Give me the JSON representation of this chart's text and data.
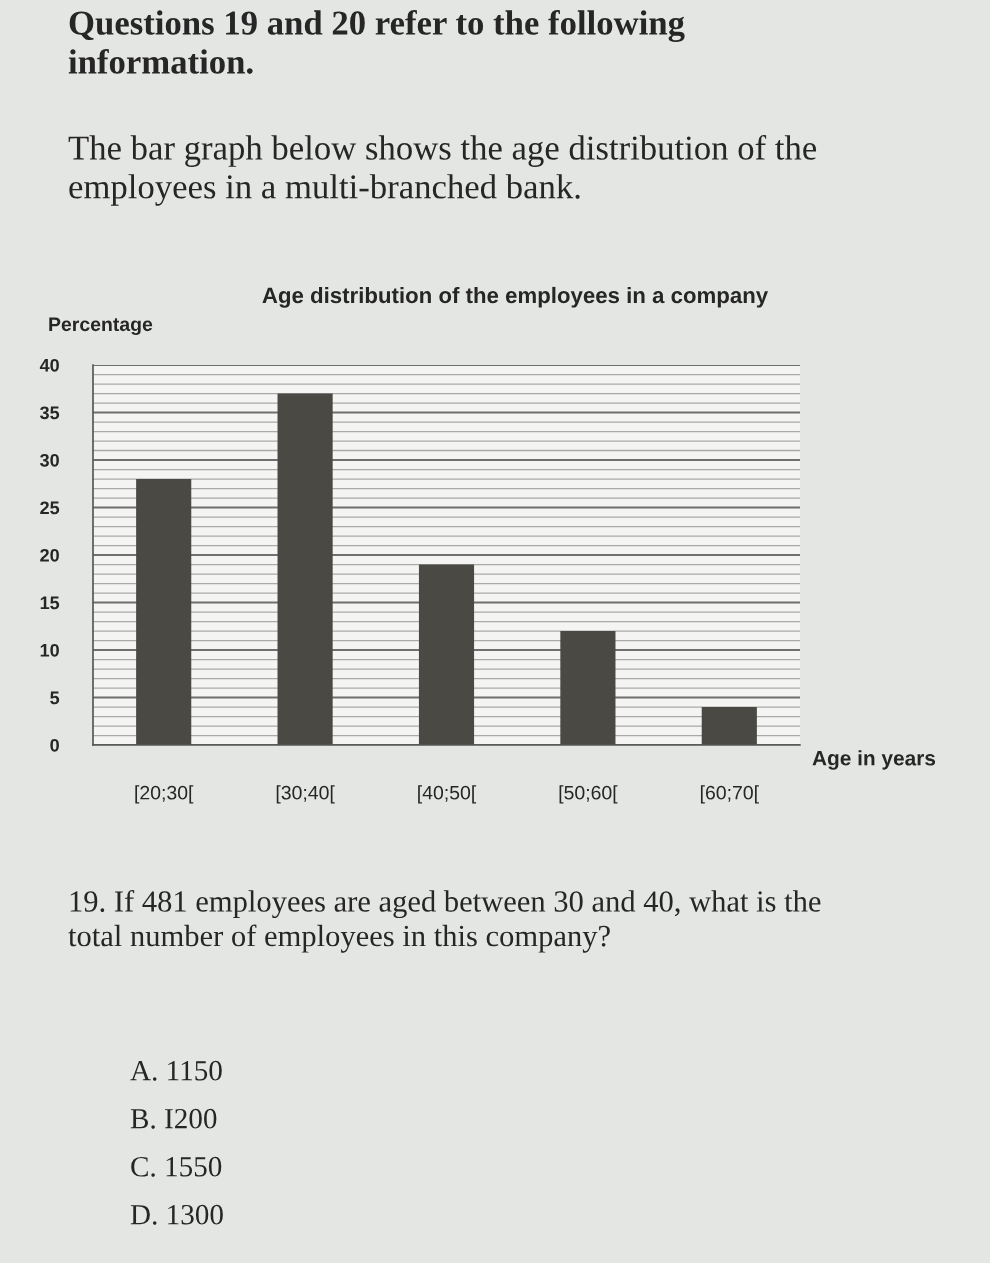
{
  "chart_data": {
    "type": "bar",
    "title": "Age distribution of the employees in a company",
    "ylabel": "Percentage",
    "xlabel": "Age in years",
    "categories": [
      "[20;30[",
      "[30;40[",
      "[40;50[",
      "[50;60[",
      "[60;70["
    ],
    "values": [
      28,
      37,
      19,
      12,
      4
    ],
    "color": "#4a4944",
    "ylim": [
      0,
      40
    ],
    "yticks": [
      0,
      {
        "value": 1,
        "label": null
      },
      {
        "value": 2,
        "label": null
      },
      {
        "value": 3,
        "label": null
      },
      {
        "value": 4,
        "label": null
      },
      5,
      {
        "value": 6,
        "label": null
      },
      {
        "value": 7,
        "label": null
      },
      {
        "value": 8,
        "label": null
      },
      {
        "value": 9,
        "label": null
      },
      10,
      {
        "value": 11,
        "label": null
      },
      {
        "value": 12,
        "label": null
      },
      {
        "value": 13,
        "label": null
      },
      {
        "value": 14,
        "label": null
      },
      15,
      {
        "value": 16,
        "label": null
      },
      {
        "value": 17,
        "label": null
      },
      {
        "value": 18,
        "label": null
      },
      {
        "value": 19,
        "label": null
      },
      20,
      {
        "value": 21,
        "label": null
      },
      {
        "value": 22,
        "label": null
      },
      {
        "value": 23,
        "label": null
      },
      {
        "value": 24,
        "label": null
      },
      25,
      {
        "value": 26,
        "label": null
      },
      {
        "value": 27,
        "label": null
      },
      {
        "value": 28,
        "label": null
      },
      {
        "value": 29,
        "label": null
      },
      30,
      {
        "value": 31,
        "label": null
      },
      {
        "value": 32,
        "label": null
      },
      {
        "value": 33,
        "label": null
      },
      {
        "value": 34,
        "label": null
      },
      35,
      {
        "value": 36,
        "label": null
      },
      {
        "value": 37,
        "label": null
      },
      {
        "value": 38,
        "label": null
      },
      {
        "value": 39,
        "label": null
      },
      40
    ],
    "grid": "y",
    "annotations": [
      "Questions 19 and 20 refer to the following information.",
      "The bar graph below shows the age distribution of the employees in a multi-branched bank.",
      "19. If 481 employees are aged between 30 and 40, what is the total number of employees in this company?",
      "A. 1150",
      "B. I200",
      "C. 1550",
      "D. 1300"
    ]
  }
}
